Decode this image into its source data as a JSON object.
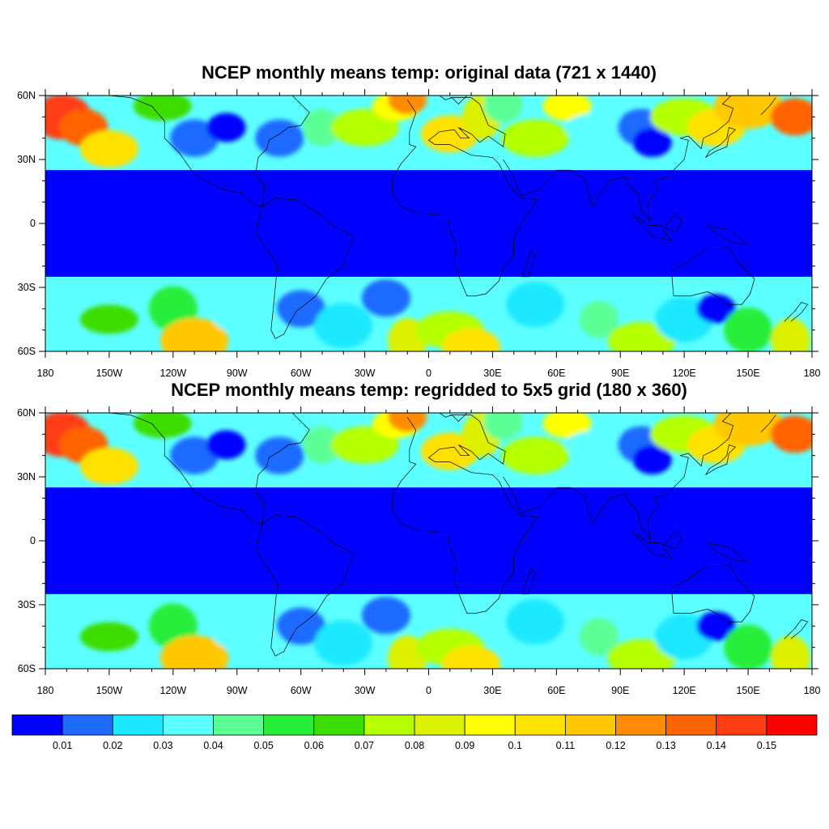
{
  "panels": [
    {
      "title": "NCEP monthly means temp: original data (721 x 1440)"
    },
    {
      "title": "NCEP monthly means temp: regridded to 5x5 grid (180 x 360)"
    }
  ],
  "axes": {
    "lat_labels": [
      "60N",
      "30N",
      "0",
      "30S",
      "60S"
    ],
    "lon_labels": [
      "180",
      "150W",
      "120W",
      "90W",
      "60W",
      "30W",
      "0",
      "30E",
      "60E",
      "90E",
      "120E",
      "150E",
      "180"
    ]
  },
  "chart_data": {
    "type": "heatmap",
    "lat_range": [
      -60,
      60
    ],
    "lon_range": [
      -180,
      180
    ],
    "masked_band_lat": [
      -25,
      25
    ],
    "colorbar": {
      "levels": [
        "0.01",
        "0.02",
        "0.03",
        "0.04",
        "0.05",
        "0.06",
        "0.07",
        "0.08",
        "0.09",
        "0.1",
        "0.11",
        "0.12",
        "0.13",
        "0.14",
        "0.15"
      ],
      "colors": [
        "#0000ff",
        "#1e6bff",
        "#1ee8ff",
        "#5cffff",
        "#5cff96",
        "#28ee3a",
        "#3cdd00",
        "#b4ff00",
        "#dcf000",
        "#ffff00",
        "#ffe100",
        "#ffc800",
        "#ff8c00",
        "#ff6400",
        "#ff3c14",
        "#ff0000"
      ]
    },
    "blobs": [
      {
        "lon": -172,
        "lat": 50,
        "level": 14
      },
      {
        "lon": -162,
        "lat": 45,
        "level": 13
      },
      {
        "lon": -150,
        "lat": 35,
        "level": 10
      },
      {
        "lon": -125,
        "lat": 55,
        "level": 6
      },
      {
        "lon": -110,
        "lat": 40,
        "level": 1
      },
      {
        "lon": -95,
        "lat": 45,
        "level": 0
      },
      {
        "lon": -70,
        "lat": 40,
        "level": 1
      },
      {
        "lon": -50,
        "lat": 45,
        "level": 4
      },
      {
        "lon": -30,
        "lat": 45,
        "level": 7
      },
      {
        "lon": -15,
        "lat": 55,
        "level": 9
      },
      {
        "lon": -10,
        "lat": 58,
        "level": 12
      },
      {
        "lon": 10,
        "lat": 42,
        "level": 10
      },
      {
        "lon": 25,
        "lat": 50,
        "level": 8
      },
      {
        "lon": 35,
        "lat": 56,
        "level": 4
      },
      {
        "lon": 50,
        "lat": 40,
        "level": 7
      },
      {
        "lon": 65,
        "lat": 55,
        "level": 9
      },
      {
        "lon": 80,
        "lat": 45,
        "level": 3
      },
      {
        "lon": 100,
        "lat": 45,
        "level": 1
      },
      {
        "lon": 105,
        "lat": 38,
        "level": 0
      },
      {
        "lon": 120,
        "lat": 50,
        "level": 7
      },
      {
        "lon": 135,
        "lat": 45,
        "level": 10
      },
      {
        "lon": 150,
        "lat": 55,
        "level": 11
      },
      {
        "lon": 172,
        "lat": 50,
        "level": 13
      },
      {
        "lon": -170,
        "lat": -30,
        "level": 3
      },
      {
        "lon": -150,
        "lat": -45,
        "level": 6
      },
      {
        "lon": -120,
        "lat": -40,
        "level": 5
      },
      {
        "lon": -110,
        "lat": -55,
        "level": 11
      },
      {
        "lon": -85,
        "lat": -45,
        "level": 3
      },
      {
        "lon": -60,
        "lat": -40,
        "level": 1
      },
      {
        "lon": -40,
        "lat": -48,
        "level": 2
      },
      {
        "lon": -20,
        "lat": -35,
        "level": 1
      },
      {
        "lon": -10,
        "lat": -55,
        "level": 8
      },
      {
        "lon": 10,
        "lat": -50,
        "level": 7
      },
      {
        "lon": 20,
        "lat": -58,
        "level": 10
      },
      {
        "lon": 50,
        "lat": -38,
        "level": 2
      },
      {
        "lon": 80,
        "lat": -45,
        "level": 4
      },
      {
        "lon": 100,
        "lat": -55,
        "level": 7
      },
      {
        "lon": 120,
        "lat": -45,
        "level": 2
      },
      {
        "lon": 135,
        "lat": -40,
        "level": 0
      },
      {
        "lon": 150,
        "lat": -50,
        "level": 5
      },
      {
        "lon": 170,
        "lat": -55,
        "level": 8
      },
      {
        "lon": 175,
        "lat": -35,
        "level": 3
      }
    ]
  }
}
